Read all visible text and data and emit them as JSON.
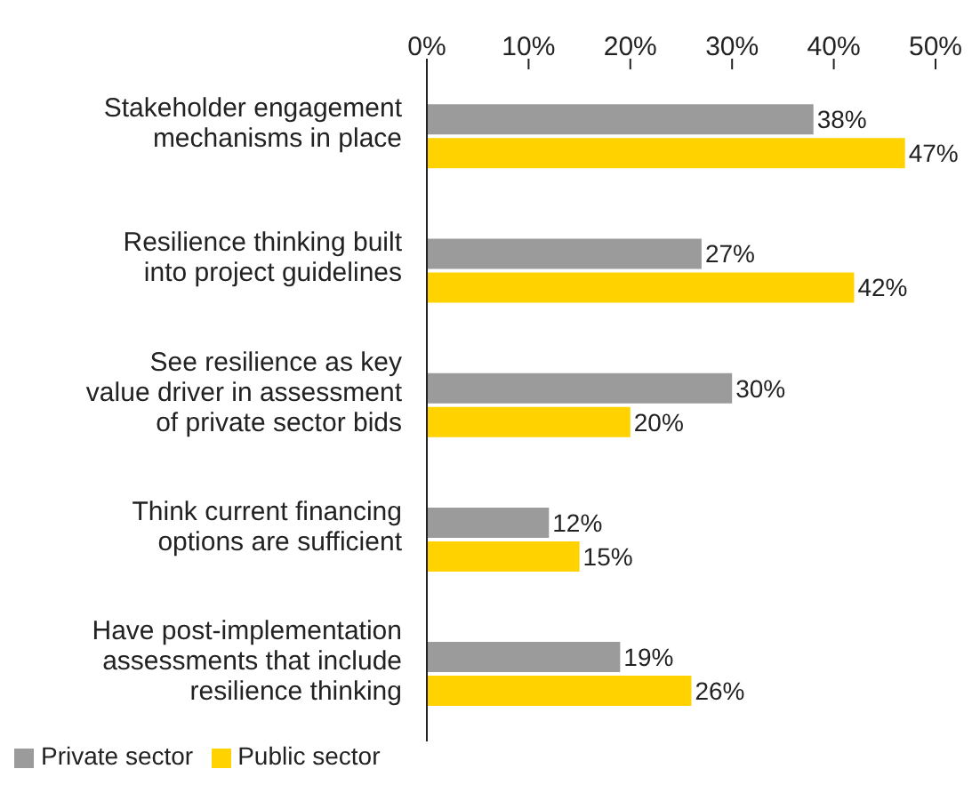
{
  "chart_data": {
    "type": "bar",
    "orientation": "horizontal",
    "categories": [
      "Stakeholder engagement mechanisms in place",
      "Resilience thinking built into project guidelines",
      "See resilience as key value driver in assessment of private sector bids",
      "Think current financing options are sufficient",
      "Have post-implementation assessments that include resilience thinking"
    ],
    "series": [
      {
        "name": "Private sector",
        "color": "#9b9b9b",
        "values": [
          38,
          27,
          30,
          12,
          19
        ],
        "value_labels": [
          "38%",
          "27%",
          "30%",
          "12%",
          "19%"
        ]
      },
      {
        "name": "Public sector",
        "color": "#ffd200",
        "values": [
          47,
          42,
          20,
          15,
          26
        ],
        "value_labels": [
          "47%",
          "42%",
          "20%",
          "15%",
          "26%"
        ]
      }
    ],
    "xlim": [
      0,
      50
    ],
    "xticks": [
      {
        "value": 0,
        "label": "0%"
      },
      {
        "value": 10,
        "label": "10%"
      },
      {
        "value": 20,
        "label": "20%"
      },
      {
        "value": 30,
        "label": "30%"
      },
      {
        "value": 40,
        "label": "40%"
      },
      {
        "value": 50,
        "label": "50%"
      }
    ],
    "grid": false,
    "legend": "bottom"
  }
}
